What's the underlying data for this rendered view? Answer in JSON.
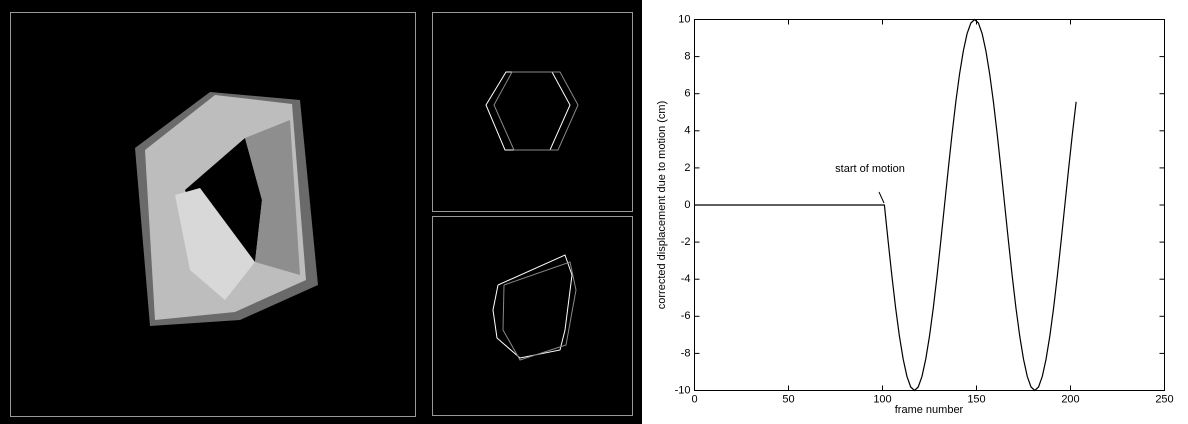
{
  "chart_data": {
    "type": "line",
    "xlabel": "frame number",
    "ylabel": "corrected displacement due to motion (cm)",
    "annotation": "start of motion",
    "x": [
      0,
      101,
      103,
      105,
      107,
      109,
      111,
      113,
      115,
      117,
      119,
      121,
      123,
      125,
      127,
      129,
      131,
      133,
      135,
      137,
      139,
      141,
      143,
      145,
      147,
      149,
      151,
      153,
      155,
      157,
      159,
      161,
      163,
      165,
      167,
      169,
      171,
      173,
      175,
      177,
      179,
      181,
      183,
      185,
      187,
      189,
      191,
      193,
      195,
      197,
      199,
      201,
      203
    ],
    "values": [
      0,
      0,
      -1.95,
      -3.83,
      -5.56,
      -7.07,
      -8.31,
      -9.24,
      -9.81,
      -10,
      -9.81,
      -9.24,
      -8.31,
      -7.07,
      -5.56,
      -3.83,
      -1.95,
      0,
      1.95,
      3.83,
      5.56,
      7.07,
      8.31,
      9.24,
      9.81,
      10,
      9.81,
      9.24,
      8.31,
      7.07,
      5.56,
      3.83,
      1.95,
      0,
      -1.95,
      -3.83,
      -5.56,
      -7.07,
      -8.31,
      -9.24,
      -9.81,
      -10,
      -9.81,
      -9.24,
      -8.31,
      -7.07,
      -5.56,
      -3.83,
      -1.95,
      0,
      1.95,
      3.83,
      5.56
    ],
    "color": "#000000",
    "xlim": [
      0,
      250
    ],
    "xticks": [
      0,
      50,
      100,
      150,
      200,
      250
    ],
    "ylim": [
      -10,
      10
    ],
    "yticks": [
      -10,
      -8,
      -6,
      -4,
      -2,
      0,
      2,
      4,
      6,
      8,
      10
    ],
    "grid": false
  }
}
